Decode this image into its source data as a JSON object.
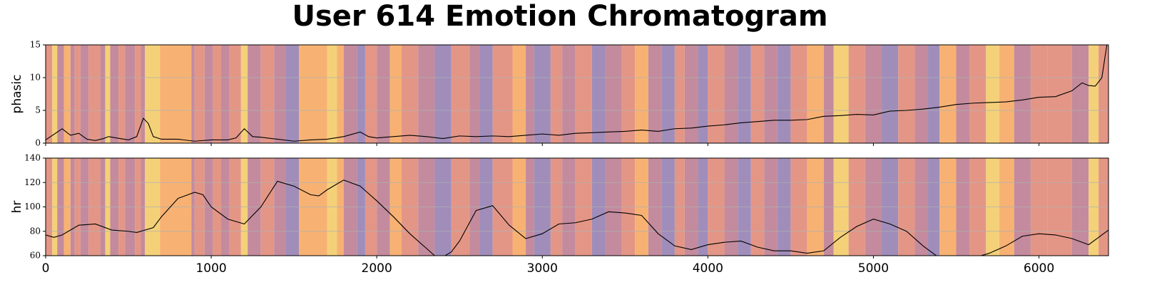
{
  "chart_data": [
    {
      "type": "line",
      "title": "User 614 Emotion Chromatogram",
      "ylabel": "phasic",
      "color": "#000000",
      "grid": true,
      "x": [
        0,
        100,
        150,
        200,
        250,
        300,
        350,
        380,
        450,
        500,
        550,
        590,
        620,
        650,
        700,
        800,
        900,
        1000,
        1100,
        1150,
        1200,
        1250,
        1300,
        1400,
        1500,
        1600,
        1700,
        1800,
        1900,
        1950,
        2000,
        2100,
        2200,
        2300,
        2400,
        2500,
        2600,
        2700,
        2800,
        2900,
        3000,
        3100,
        3200,
        3300,
        3400,
        3500,
        3600,
        3700,
        3800,
        3900,
        4000,
        4100,
        4200,
        4300,
        4400,
        4500,
        4600,
        4700,
        4800,
        4900,
        5000,
        5100,
        5200,
        5300,
        5400,
        5500,
        5600,
        5700,
        5800,
        5900,
        6000,
        6100,
        6200,
        6260,
        6300,
        6340,
        6380,
        6410
      ],
      "values": [
        0.5,
        2.2,
        1.2,
        1.5,
        0.6,
        0.4,
        0.7,
        1.0,
        0.7,
        0.5,
        1.0,
        3.8,
        3.0,
        1.0,
        0.6,
        0.6,
        0.3,
        0.5,
        0.5,
        0.8,
        2.2,
        1.0,
        0.9,
        0.6,
        0.3,
        0.5,
        0.6,
        1.0,
        1.7,
        1.0,
        0.8,
        1.0,
        1.2,
        1.0,
        0.7,
        1.1,
        1.0,
        1.1,
        1.0,
        1.2,
        1.4,
        1.2,
        1.5,
        1.6,
        1.7,
        1.8,
        2.0,
        1.8,
        2.2,
        2.3,
        2.6,
        2.8,
        3.1,
        3.3,
        3.5,
        3.5,
        3.6,
        4.1,
        4.2,
        4.4,
        4.3,
        4.9,
        5.0,
        5.2,
        5.5,
        5.9,
        6.1,
        6.2,
        6.3,
        6.6,
        7.0,
        7.1,
        8.0,
        9.2,
        8.8,
        8.7,
        10,
        15
      ],
      "xlim": [
        0,
        6420
      ],
      "xticks": [
        0,
        1000,
        2000,
        3000,
        4000,
        5000,
        6000
      ],
      "ylim": [
        0,
        15
      ],
      "yticks": [
        0,
        5,
        10,
        15
      ]
    },
    {
      "type": "line",
      "ylabel": "hr",
      "color": "#000000",
      "grid": true,
      "x": [
        0,
        50,
        100,
        200,
        300,
        400,
        500,
        550,
        650,
        700,
        800,
        900,
        950,
        1000,
        1100,
        1200,
        1300,
        1400,
        1500,
        1600,
        1650,
        1700,
        1800,
        1900,
        2000,
        2100,
        2200,
        2300,
        2350,
        2400,
        2450,
        2500,
        2600,
        2700,
        2800,
        2900,
        3000,
        3100,
        3200,
        3300,
        3400,
        3500,
        3600,
        3700,
        3800,
        3900,
        4000,
        4100,
        4200,
        4300,
        4400,
        4500,
        4600,
        4700,
        4800,
        4900,
        5000,
        5100,
        5200,
        5300,
        5400,
        5500,
        5600,
        5700,
        5800,
        5900,
        6000,
        6100,
        6200,
        6300,
        6400,
        6420
      ],
      "values": [
        77,
        75,
        77,
        85,
        86,
        81,
        80,
        79,
        83,
        92,
        107,
        112,
        110,
        100,
        90,
        86,
        100,
        121,
        117,
        110,
        109,
        114,
        122,
        117,
        105,
        92,
        78,
        66,
        60,
        59,
        63,
        72,
        97,
        101,
        85,
        74,
        78,
        86,
        87,
        90,
        96,
        95,
        93,
        78,
        68,
        65,
        69,
        71,
        72,
        67,
        64,
        64,
        62,
        64,
        75,
        84,
        90,
        86,
        80,
        68,
        58,
        56,
        58,
        62,
        68,
        76,
        78,
        77,
        74,
        69,
        79,
        81
      ],
      "xlim": [
        0,
        6420
      ],
      "xticks": [
        0,
        1000,
        2000,
        3000,
        4000,
        5000,
        6000
      ],
      "ylim": [
        60,
        140
      ],
      "yticks": [
        60,
        80,
        100,
        120,
        140
      ]
    }
  ],
  "bands": {
    "edges": [
      0,
      40,
      70,
      110,
      150,
      175,
      210,
      260,
      330,
      360,
      390,
      440,
      480,
      540,
      575,
      600,
      690,
      880,
      900,
      960,
      1010,
      1060,
      1110,
      1180,
      1220,
      1300,
      1380,
      1450,
      1530,
      1700,
      1760,
      1800,
      1880,
      1930,
      2000,
      2080,
      2150,
      2250,
      2350,
      2450,
      2560,
      2620,
      2700,
      2820,
      2900,
      2950,
      3050,
      3120,
      3200,
      3300,
      3380,
      3480,
      3560,
      3640,
      3720,
      3800,
      3860,
      3940,
      4000,
      4100,
      4180,
      4260,
      4340,
      4420,
      4500,
      4600,
      4700,
      4760,
      4850,
      4950,
      5050,
      5150,
      5250,
      5330,
      5400,
      5500,
      5580,
      5680,
      5760,
      5850,
      5950,
      6050,
      6200,
      6300,
      6360,
      6420
    ],
    "colors": [
      "#e3907f",
      "#f3cf72",
      "#c08598",
      "#f7ae6b",
      "#c08598",
      "#e3907f",
      "#c08598",
      "#e3907f",
      "#c08598",
      "#f3cf72",
      "#c08598",
      "#e3907f",
      "#c08598",
      "#e3907f",
      "#c08598",
      "#f3cf72",
      "#f7ae6b",
      "#c08598",
      "#e3907f",
      "#c08598",
      "#e3907f",
      "#c08598",
      "#e3907f",
      "#f3cf72",
      "#c08598",
      "#e3907f",
      "#c08598",
      "#9b87b6",
      "#f7ae6b",
      "#f3cf72",
      "#f7ae6b",
      "#c08598",
      "#9b87b6",
      "#e3907f",
      "#c08598",
      "#f7ae6b",
      "#e3907f",
      "#c08598",
      "#9b87b6",
      "#e3907f",
      "#c08598",
      "#9b87b6",
      "#e3907f",
      "#f7ae6b",
      "#c08598",
      "#9b87b6",
      "#e3907f",
      "#c08598",
      "#e3907f",
      "#9b87b6",
      "#c08598",
      "#e3907f",
      "#f7ae6b",
      "#c08598",
      "#9b87b6",
      "#e3907f",
      "#c08598",
      "#9b87b6",
      "#e3907f",
      "#c08598",
      "#9b87b6",
      "#e3907f",
      "#c08598",
      "#9b87b6",
      "#e3907f",
      "#f7ae6b",
      "#c08598",
      "#f3cf72",
      "#e3907f",
      "#c08598",
      "#9b87b6",
      "#e3907f",
      "#c08598",
      "#9b87b6",
      "#f7ae6b",
      "#c08598",
      "#e3907f",
      "#f3cf72",
      "#f7ae6b",
      "#c08598",
      "#e3907f",
      "#e3907f",
      "#c08598",
      "#f3cf72",
      "#e3907f"
    ]
  }
}
